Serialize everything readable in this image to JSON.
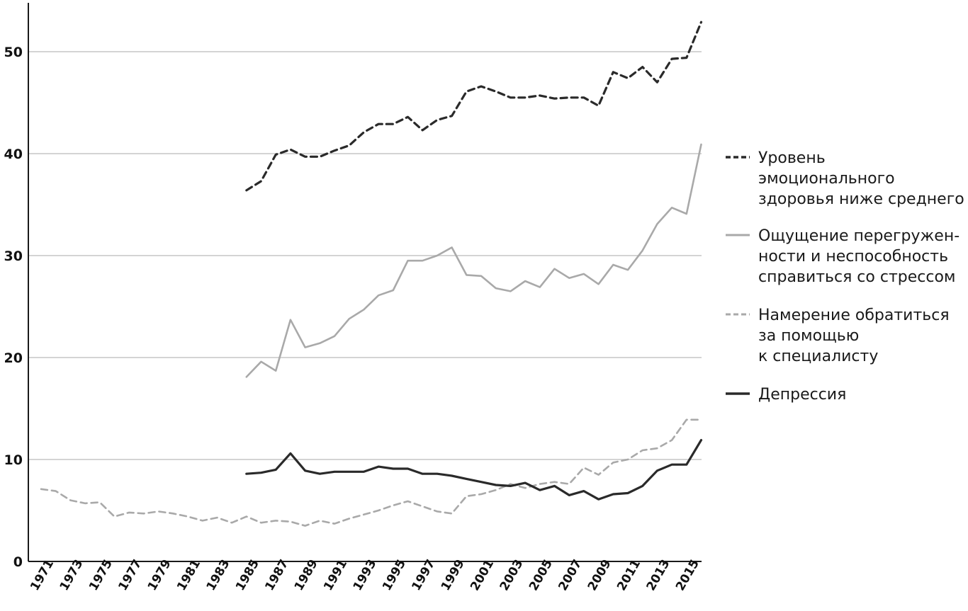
{
  "chart_data": {
    "type": "line",
    "title": "",
    "xlabel": "",
    "ylabel": "",
    "ylim": [
      0,
      55
    ],
    "xlim": [
      1971,
      2016
    ],
    "grid": true,
    "legend_position": "right",
    "y_ticks": [
      "0",
      "10",
      "20",
      "30",
      "40",
      "50"
    ],
    "x_ticks": [
      "1971",
      "1973",
      "1975",
      "1977",
      "1979",
      "1981",
      "1983",
      "1985",
      "1987",
      "1989",
      "1991",
      "1993",
      "1995",
      "1997",
      "1999",
      "2001",
      "2003",
      "2005",
      "2007",
      "2009",
      "2011",
      "2013",
      "2015"
    ],
    "series": [
      {
        "name": "Уровень эмоционального здоровья ниже среднего",
        "legend_lines": [
          "Уровень",
          "эмоционального",
          "здоровья ниже среднего"
        ],
        "style": "dashed",
        "color": "#2a2a2a",
        "x": [
          1985,
          1986,
          1987,
          1988,
          1989,
          1990,
          1991,
          1992,
          1993,
          1994,
          1995,
          1996,
          1997,
          1998,
          1999,
          2000,
          2001,
          2002,
          2003,
          2004,
          2005,
          2006,
          2007,
          2008,
          2009,
          2010,
          2011,
          2012,
          2013,
          2014,
          2015,
          2016
        ],
        "values": [
          36.4,
          37.3,
          39.9,
          40.4,
          39.7,
          39.7,
          40.3,
          40.8,
          42.1,
          42.9,
          42.9,
          43.6,
          42.3,
          43.3,
          43.7,
          46.1,
          46.6,
          46.1,
          45.5,
          45.5,
          45.7,
          45.4,
          45.5,
          45.5,
          44.7,
          48.0,
          47.4,
          48.5,
          47.0,
          49.3,
          49.4,
          52.9
        ]
      },
      {
        "name": "Ощущение перегруженности и неспособность справиться со стрессом",
        "legend_lines": [
          "Ощущение перегружен-",
          "ности и неспособность",
          "справиться со стрессом"
        ],
        "style": "solid",
        "color": "#a9a9a9",
        "x": [
          1985,
          1986,
          1987,
          1988,
          1989,
          1990,
          1991,
          1992,
          1993,
          1994,
          1995,
          1996,
          1997,
          1998,
          1999,
          2000,
          2001,
          2002,
          2003,
          2004,
          2005,
          2006,
          2007,
          2008,
          2009,
          2010,
          2011,
          2012,
          2013,
          2014,
          2015,
          2016
        ],
        "values": [
          18.1,
          19.6,
          18.7,
          23.7,
          21.0,
          21.4,
          22.1,
          23.8,
          24.7,
          26.1,
          26.6,
          29.5,
          29.5,
          30.0,
          30.8,
          28.1,
          28.0,
          26.8,
          26.5,
          27.5,
          26.9,
          28.7,
          27.8,
          28.2,
          27.2,
          29.1,
          28.6,
          30.5,
          33.1,
          34.7,
          34.1,
          40.9
        ]
      },
      {
        "name": "Намерение обратиться за помощью к специалисту",
        "legend_lines": [
          "Намерение обратиться",
          "за помощью",
          "к специалисту"
        ],
        "style": "dashed",
        "color": "#a9a9a9",
        "x": [
          1971,
          1972,
          1973,
          1974,
          1975,
          1976,
          1977,
          1978,
          1979,
          1980,
          1981,
          1982,
          1983,
          1984,
          1985,
          1986,
          1987,
          1988,
          1989,
          1990,
          1991,
          1992,
          1993,
          1994,
          1995,
          1996,
          1997,
          1998,
          1999,
          2000,
          2001,
          2002,
          2003,
          2004,
          2005,
          2006,
          2007,
          2008,
          2009,
          2010,
          2011,
          2012,
          2013,
          2014,
          2015,
          2016
        ],
        "values": [
          7.1,
          6.9,
          6.0,
          5.7,
          5.8,
          4.4,
          4.8,
          4.7,
          4.9,
          4.7,
          4.4,
          4.0,
          4.3,
          3.8,
          4.4,
          3.8,
          4.0,
          3.9,
          3.5,
          4.0,
          3.7,
          4.2,
          4.6,
          5.0,
          5.5,
          5.9,
          5.4,
          4.9,
          4.7,
          6.4,
          6.6,
          7.0,
          7.6,
          7.2,
          7.6,
          7.8,
          7.6,
          9.2,
          8.5,
          9.7,
          10.0,
          10.9,
          11.1,
          11.9,
          13.9,
          13.9
        ]
      },
      {
        "name": "Депрессия",
        "legend_lines": [
          "Депрессия"
        ],
        "style": "solid",
        "color": "#2a2a2a",
        "x": [
          1985,
          1986,
          1987,
          1988,
          1989,
          1990,
          1991,
          1992,
          1993,
          1994,
          1995,
          1996,
          1997,
          1998,
          1999,
          2000,
          2001,
          2002,
          2003,
          2004,
          2005,
          2006,
          2007,
          2008,
          2009,
          2010,
          2011,
          2012,
          2013,
          2014,
          2015,
          2016
        ],
        "values": [
          8.6,
          8.7,
          9.0,
          10.6,
          8.9,
          8.6,
          8.8,
          8.8,
          8.8,
          9.3,
          9.1,
          9.1,
          8.6,
          8.6,
          8.4,
          8.1,
          7.8,
          7.5,
          7.4,
          7.7,
          7.0,
          7.4,
          6.5,
          6.9,
          6.1,
          6.6,
          6.7,
          7.4,
          8.9,
          9.5,
          9.5,
          11.9
        ]
      }
    ]
  }
}
